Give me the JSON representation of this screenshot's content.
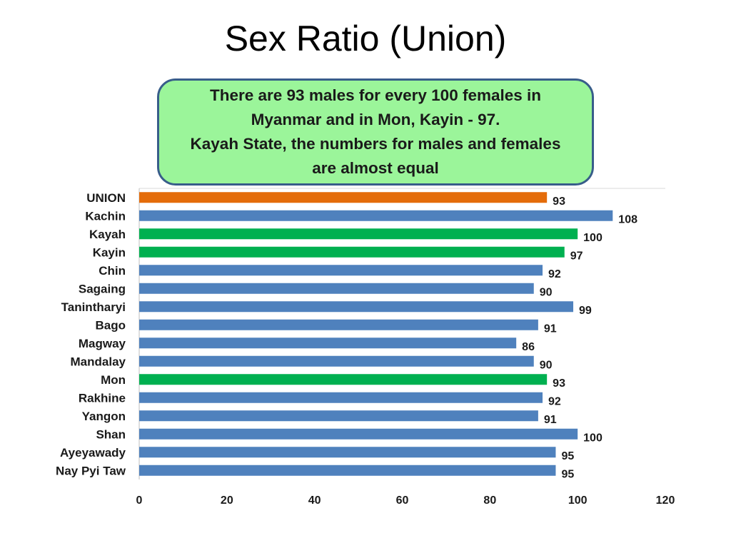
{
  "title": "Sex Ratio (Union)",
  "callout": {
    "lines": [
      "There are 93 males for every 100 females in",
      "Myanmar and in Mon, Kayin - 97.",
      "Kayah State, the numbers for males and females",
      "are almost equal"
    ]
  },
  "colors": {
    "default_bar": "#4f81bd",
    "union_bar": "#e46c0a",
    "highlight_bar": "#00b050",
    "callout_fill": "#9bf59a",
    "callout_border": "#385d8a"
  },
  "chart_data": {
    "type": "bar",
    "orientation": "horizontal",
    "categories": [
      "UNION",
      "Kachin",
      "Kayah",
      "Kayin",
      "Chin",
      "Sagaing",
      "Tanintharyi",
      "Bago",
      "Magway",
      "Mandalay",
      "Mon",
      "Rakhine",
      "Yangon",
      "Shan",
      "Ayeyawady",
      "Nay Pyi Taw"
    ],
    "values": [
      93,
      108,
      100,
      97,
      92,
      90,
      99,
      91,
      86,
      90,
      93,
      92,
      91,
      100,
      95,
      95
    ],
    "bar_colors": [
      "union_bar",
      "default_bar",
      "highlight_bar",
      "highlight_bar",
      "default_bar",
      "default_bar",
      "default_bar",
      "default_bar",
      "default_bar",
      "default_bar",
      "highlight_bar",
      "default_bar",
      "default_bar",
      "default_bar",
      "default_bar",
      "default_bar"
    ],
    "xlim": [
      0,
      120
    ],
    "xticks": [
      0,
      20,
      40,
      60,
      80,
      100,
      120
    ],
    "data_labels": true,
    "grid": false,
    "legend": "none"
  }
}
